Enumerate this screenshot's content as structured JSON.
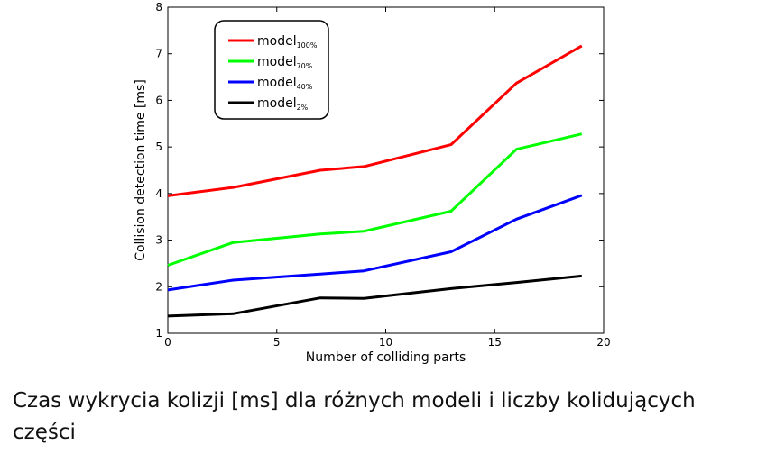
{
  "chart_data": {
    "type": "line",
    "xlabel": "Number of colliding parts",
    "ylabel": "Collision detection time [ms]",
    "xlim": [
      0,
      20
    ],
    "ylim": [
      1,
      8
    ],
    "xticks": [
      0,
      5,
      10,
      15,
      20
    ],
    "yticks": [
      1,
      2,
      3,
      4,
      5,
      6,
      7,
      8
    ],
    "grid": false,
    "legend_position": "top-left",
    "x": [
      0,
      3,
      7,
      9,
      13,
      16,
      19
    ],
    "series": [
      {
        "name": "model",
        "subscript": "100%",
        "color": "#ff0000",
        "values": [
          3.95,
          4.13,
          4.5,
          4.58,
          5.05,
          6.37,
          7.17
        ]
      },
      {
        "name": "model",
        "subscript": "70%",
        "color": "#00ff00",
        "values": [
          2.46,
          2.95,
          3.13,
          3.19,
          3.62,
          4.95,
          5.28
        ]
      },
      {
        "name": "model",
        "subscript": "40%",
        "color": "#0000ff",
        "values": [
          1.93,
          2.14,
          2.27,
          2.34,
          2.75,
          3.45,
          3.96
        ]
      },
      {
        "name": "model",
        "subscript": "2%",
        "color": "#000000",
        "values": [
          1.37,
          1.42,
          1.76,
          1.75,
          1.96,
          2.09,
          2.23
        ]
      }
    ]
  },
  "caption": "Czas wykrycia kolizji [ms] dla różnych modeli i liczby kolidujących części"
}
